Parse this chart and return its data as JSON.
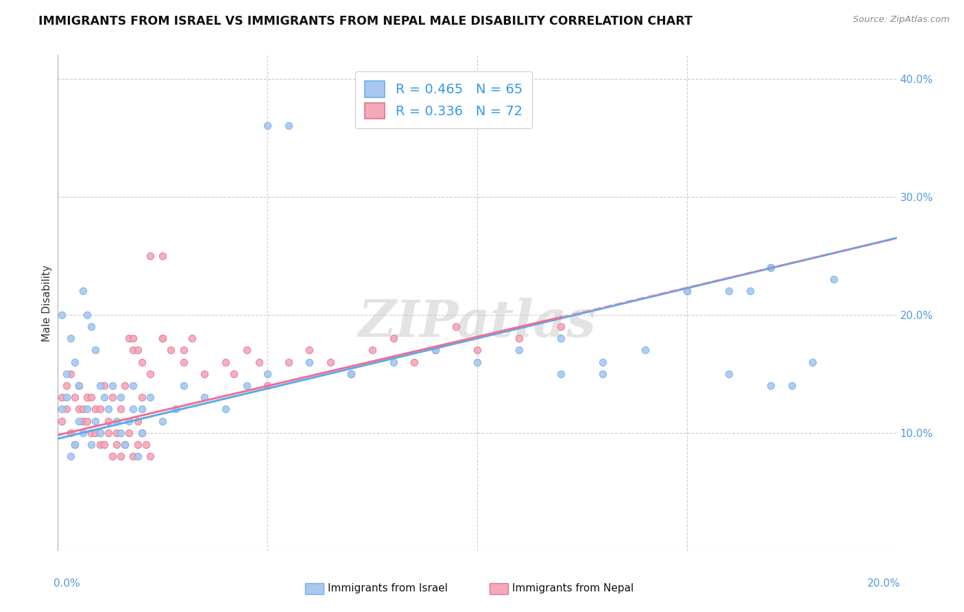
{
  "title": "IMMIGRANTS FROM ISRAEL VS IMMIGRANTS FROM NEPAL MALE DISABILITY CORRELATION CHART",
  "source": "Source: ZipAtlas.com",
  "ylabel": "Male Disability",
  "xlim": [
    0.0,
    0.2
  ],
  "ylim": [
    0.0,
    0.42
  ],
  "yticks": [
    0.1,
    0.2,
    0.3,
    0.4
  ],
  "ytick_labels": [
    "10.0%",
    "20.0%",
    "30.0%",
    "40.0%"
  ],
  "xtick_labels": [
    "0.0%",
    "20.0%"
  ],
  "israel_color": "#a8c8f0",
  "israel_edge_color": "#6aaee8",
  "nepal_color": "#f4a8b8",
  "nepal_edge_color": "#e07090",
  "israel_line_color": "#5aaaee",
  "nepal_line_color": "#ee7090",
  "israel_R": 0.465,
  "israel_N": 65,
  "nepal_R": 0.336,
  "nepal_N": 72,
  "legend_label_israel": "Immigrants from Israel",
  "legend_label_nepal": "Immigrants from Nepal",
  "watermark": "ZIPatlas",
  "background_color": "#ffffff",
  "grid_color": "#cccccc",
  "israel_scatter_x": [
    0.001,
    0.002,
    0.003,
    0.004,
    0.005,
    0.006,
    0.007,
    0.008,
    0.009,
    0.01,
    0.011,
    0.012,
    0.013,
    0.014,
    0.015,
    0.016,
    0.017,
    0.018,
    0.019,
    0.02,
    0.001,
    0.002,
    0.003,
    0.004,
    0.005,
    0.006,
    0.007,
    0.008,
    0.009,
    0.01,
    0.015,
    0.018,
    0.02,
    0.022,
    0.025,
    0.028,
    0.03,
    0.035,
    0.04,
    0.045,
    0.05,
    0.06,
    0.07,
    0.08,
    0.09,
    0.1,
    0.11,
    0.12,
    0.13,
    0.14,
    0.15,
    0.16,
    0.17,
    0.05,
    0.12,
    0.13,
    0.15,
    0.16,
    0.165,
    0.17,
    0.175,
    0.18,
    0.185,
    0.055,
    0.17
  ],
  "israel_scatter_y": [
    0.12,
    0.13,
    0.08,
    0.09,
    0.11,
    0.1,
    0.12,
    0.09,
    0.11,
    0.1,
    0.13,
    0.12,
    0.14,
    0.11,
    0.1,
    0.09,
    0.11,
    0.12,
    0.08,
    0.1,
    0.2,
    0.15,
    0.18,
    0.16,
    0.14,
    0.22,
    0.2,
    0.19,
    0.17,
    0.14,
    0.13,
    0.14,
    0.12,
    0.13,
    0.11,
    0.12,
    0.14,
    0.13,
    0.12,
    0.14,
    0.15,
    0.16,
    0.15,
    0.16,
    0.17,
    0.16,
    0.17,
    0.18,
    0.15,
    0.17,
    0.22,
    0.15,
    0.24,
    0.36,
    0.15,
    0.16,
    0.22,
    0.22,
    0.22,
    0.14,
    0.14,
    0.16,
    0.23,
    0.36,
    0.24
  ],
  "nepal_scatter_x": [
    0.001,
    0.002,
    0.003,
    0.004,
    0.005,
    0.006,
    0.007,
    0.008,
    0.009,
    0.01,
    0.011,
    0.012,
    0.013,
    0.014,
    0.015,
    0.016,
    0.017,
    0.018,
    0.019,
    0.02,
    0.001,
    0.002,
    0.003,
    0.004,
    0.005,
    0.006,
    0.007,
    0.008,
    0.009,
    0.01,
    0.011,
    0.012,
    0.013,
    0.014,
    0.015,
    0.016,
    0.017,
    0.018,
    0.019,
    0.02,
    0.021,
    0.022,
    0.022,
    0.025,
    0.025,
    0.027,
    0.03,
    0.03,
    0.032,
    0.035,
    0.04,
    0.042,
    0.045,
    0.048,
    0.05,
    0.055,
    0.06,
    0.065,
    0.07,
    0.075,
    0.08,
    0.085,
    0.09,
    0.095,
    0.1,
    0.11,
    0.12,
    0.018,
    0.019,
    0.02,
    0.022,
    0.025
  ],
  "nepal_scatter_y": [
    0.11,
    0.12,
    0.1,
    0.09,
    0.12,
    0.11,
    0.13,
    0.1,
    0.12,
    0.09,
    0.14,
    0.11,
    0.13,
    0.1,
    0.12,
    0.14,
    0.18,
    0.17,
    0.11,
    0.13,
    0.13,
    0.14,
    0.15,
    0.13,
    0.14,
    0.12,
    0.11,
    0.13,
    0.1,
    0.12,
    0.09,
    0.1,
    0.08,
    0.09,
    0.08,
    0.09,
    0.1,
    0.08,
    0.09,
    0.1,
    0.09,
    0.08,
    0.15,
    0.18,
    0.18,
    0.17,
    0.16,
    0.17,
    0.18,
    0.15,
    0.16,
    0.15,
    0.17,
    0.16,
    0.14,
    0.16,
    0.17,
    0.16,
    0.15,
    0.17,
    0.18,
    0.16,
    0.17,
    0.19,
    0.17,
    0.18,
    0.19,
    0.18,
    0.17,
    0.16,
    0.25,
    0.25
  ],
  "israel_trend": [
    0.0,
    0.2
  ],
  "israel_trend_y": [
    0.095,
    0.265
  ],
  "nepal_trend": [
    0.0,
    0.12
  ],
  "nepal_trend_y": [
    0.098,
    0.198
  ]
}
